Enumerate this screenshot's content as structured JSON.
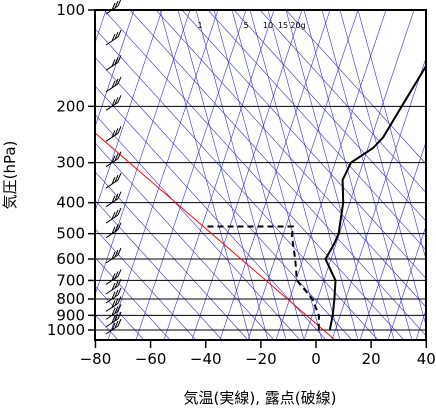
{
  "chart_data": {
    "type": "line",
    "chart_kind": "skew-t log-p thermodynamic diagram",
    "xlabel": "気温(実線), 露点(破線)",
    "ylabel": "気圧(hPa)",
    "x_units": "°C",
    "y_scale": "log",
    "y_reversed": true,
    "xlim": [
      -80,
      40
    ],
    "ylim": [
      1050,
      100
    ],
    "x_ticks": [
      -80,
      -60,
      -40,
      -20,
      0,
      20,
      40
    ],
    "x_tick_labels": [
      "−80",
      "−60",
      "−40",
      "−20",
      "0",
      "20",
      "40"
    ],
    "y_ticks": [
      100,
      200,
      300,
      400,
      500,
      600,
      700,
      800,
      900,
      1000
    ],
    "y_tick_labels": [
      "100",
      "200",
      "300",
      "400",
      "500",
      "600",
      "700",
      "800",
      "900",
      "1000"
    ],
    "mixing_ratio_labels": [
      "1",
      "5",
      "10",
      "15",
      "20g"
    ],
    "grid": true,
    "colors": {
      "temperature": "#000000",
      "dewpoint": "#000000",
      "reference_line": "#ff0000",
      "adiabats": "#3333cc",
      "axes": "#000000"
    },
    "series": [
      {
        "style": "solid",
        "points": [
          {
            "p": 100,
            "t": -57
          },
          {
            "p": 125,
            "t": -53
          },
          {
            "p": 150,
            "t": -51
          },
          {
            "p": 200,
            "t": -46
          },
          {
            "p": 250,
            "t": -42
          },
          {
            "p": 270,
            "t": -42
          },
          {
            "p": 300,
            "t": -45
          },
          {
            "p": 340,
            "t": -42
          },
          {
            "p": 400,
            "t": -34
          },
          {
            "p": 500,
            "t": -25
          },
          {
            "p": 540,
            "t": -23
          },
          {
            "p": 600,
            "t": -21
          },
          {
            "p": 700,
            "t": -10
          },
          {
            "p": 800,
            "t": -4
          },
          {
            "p": 900,
            "t": 1
          },
          {
            "p": 1000,
            "t": 5
          }
        ]
      },
      {
        "style": "dashed",
        "points": [
          {
            "p": 475,
            "t": -75
          },
          {
            "p": 475,
            "t": -44
          },
          {
            "p": 510,
            "t": -41
          },
          {
            "p": 600,
            "t": -32
          },
          {
            "p": 700,
            "t": -24
          },
          {
            "p": 800,
            "t": -12
          },
          {
            "p": 900,
            "t": -4
          },
          {
            "p": 1000,
            "t": 1
          }
        ]
      }
    ],
    "wind_barb_levels": [
      100,
      125,
      150,
      175,
      200,
      250,
      300,
      350,
      400,
      450,
      500,
      600,
      700,
      750,
      800,
      850,
      900,
      950,
      1000
    ]
  }
}
